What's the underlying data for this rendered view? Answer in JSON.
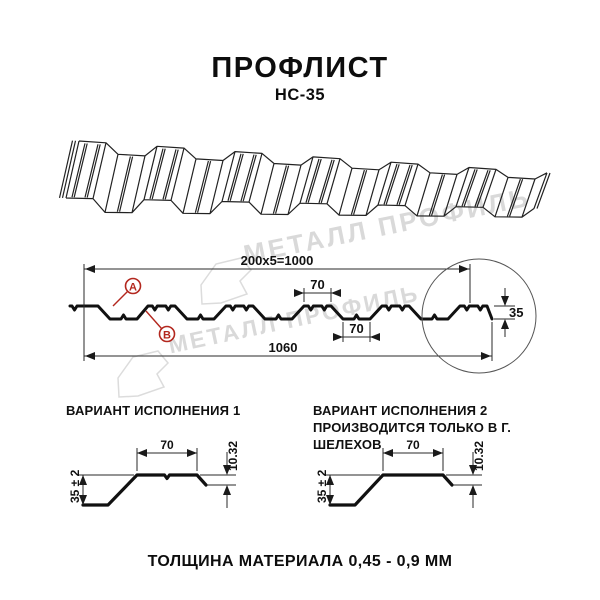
{
  "header": {
    "title": "ПРОФЛИСТ",
    "subtitle": "НС-35"
  },
  "watermark": {
    "text": "МЕТАЛЛ ПРОФИЛЬ",
    "color": "#d9d9d9"
  },
  "cross_section": {
    "dim_working_width": "200x5=1000",
    "dim_overall_width": "1060",
    "dim_crest_width": "70",
    "dim_trough_width": "70",
    "dim_profile_height": "35",
    "callout_a": "А",
    "callout_b": "В"
  },
  "variant1": {
    "heading": "ВАРИАНТ ИСПОЛНЕНИЯ 1",
    "dim_flange_width": "70",
    "dim_lip_height": "10.32",
    "dim_profile_height": "35 ± 2"
  },
  "variant2": {
    "heading_line1": "ВАРИАНТ ИСПОЛНЕНИЯ 2",
    "heading_line2": "ПРОИЗВОДИТСЯ ТОЛЬКО В Г. ШЕЛЕХОВ",
    "dim_flange_width": "70",
    "dim_lip_height": "10.32",
    "dim_profile_height": "35 ± 2"
  },
  "footer": {
    "note": "ТОЛЩИНА МАТЕРИАЛА 0,45 - 0,9 ММ"
  },
  "colors": {
    "line": "#1a1a1a",
    "callout": "#b3271e",
    "watermark": "#d9d9d9"
  }
}
